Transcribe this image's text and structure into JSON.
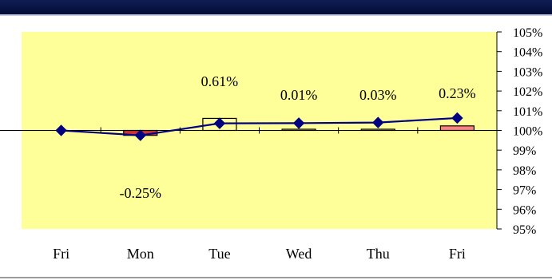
{
  "chart_data": {
    "type": "bar+line",
    "categories": [
      "Fri",
      "Mon",
      "Tue",
      "Wed",
      "Thu",
      "Fri"
    ],
    "bar_values": [
      0.0,
      -0.25,
      0.61,
      0.01,
      0.03,
      0.23
    ],
    "bar_labels": [
      "",
      "-0.25%",
      "0.61%",
      "0.01%",
      "0.03%",
      "0.23%"
    ],
    "line_values": [
      100.0,
      99.75,
      100.36,
      100.37,
      100.4,
      100.63
    ],
    "y_tick_labels": [
      "105%",
      "104%",
      "103%",
      "102%",
      "101%",
      "100%",
      "99%",
      "98%",
      "97%",
      "96%",
      "95%"
    ],
    "ylim": [
      95,
      105
    ],
    "colors": {
      "plot_area": "#ffff99",
      "line": "#000080",
      "marker": "#000080",
      "bar_negative": "#cc3333",
      "bar_positive_fill": "#ffff99",
      "bar_highlight": "#ff8080"
    }
  }
}
